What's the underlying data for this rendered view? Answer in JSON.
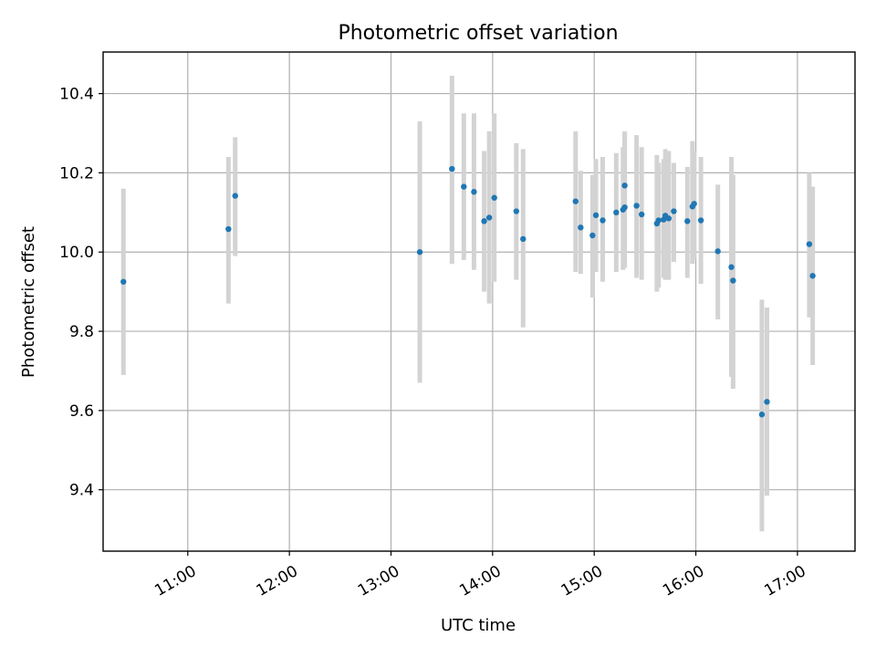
{
  "chart_data": {
    "type": "scatter",
    "title": "Photometric offset variation",
    "xlabel": "UTC time",
    "ylabel": "Photometric offset",
    "grid": true,
    "xlim": [
      "10:10",
      "17:34"
    ],
    "ylim": [
      9.245,
      10.505
    ],
    "x_ticks": [
      "11:00",
      "12:00",
      "13:00",
      "14:00",
      "15:00",
      "16:00",
      "17:00"
    ],
    "y_ticks": [
      9.4,
      9.6,
      9.8,
      10.0,
      10.2,
      10.4
    ],
    "colors": {
      "points": "#1f77b4",
      "error_bars": "#d3d3d3"
    },
    "points": [
      {
        "x": "10:22",
        "y": 9.925,
        "yerr": [
          9.69,
          10.16
        ]
      },
      {
        "x": "11:24",
        "y": 10.058,
        "yerr": [
          9.87,
          10.24
        ]
      },
      {
        "x": "11:28",
        "y": 10.142,
        "yerr": [
          9.99,
          10.29
        ]
      },
      {
        "x": "13:17",
        "y": 10.0,
        "yerr": [
          9.67,
          10.33
        ]
      },
      {
        "x": "13:36",
        "y": 10.21,
        "yerr": [
          9.97,
          10.445
        ]
      },
      {
        "x": "13:43",
        "y": 10.165,
        "yerr": [
          9.98,
          10.35
        ]
      },
      {
        "x": "13:49",
        "y": 10.152,
        "yerr": [
          9.955,
          10.35
        ]
      },
      {
        "x": "13:55",
        "y": 10.078,
        "yerr": [
          9.9,
          10.255
        ]
      },
      {
        "x": "13:58",
        "y": 10.087,
        "yerr": [
          9.87,
          10.305
        ]
      },
      {
        "x": "14:01",
        "y": 10.137,
        "yerr": [
          9.925,
          10.35
        ]
      },
      {
        "x": "14:14",
        "y": 10.103,
        "yerr": [
          9.93,
          10.275
        ]
      },
      {
        "x": "14:18",
        "y": 10.033,
        "yerr": [
          9.81,
          10.26
        ]
      },
      {
        "x": "14:49",
        "y": 10.128,
        "yerr": [
          9.95,
          10.305
        ]
      },
      {
        "x": "14:52",
        "y": 10.062,
        "yerr": [
          9.945,
          10.205
        ]
      },
      {
        "x": "14:59",
        "y": 10.042,
        "yerr": [
          9.885,
          10.195
        ]
      },
      {
        "x": "15:01",
        "y": 10.093,
        "yerr": [
          9.95,
          10.235
        ]
      },
      {
        "x": "15:05",
        "y": 10.08,
        "yerr": [
          9.925,
          10.24
        ]
      },
      {
        "x": "15:13",
        "y": 10.1,
        "yerr": [
          9.95,
          10.25
        ]
      },
      {
        "x": "15:17",
        "y": 10.107,
        "yerr": [
          9.955,
          10.265
        ]
      },
      {
        "x": "15:18",
        "y": 10.168,
        "yerr": [
          10.03,
          10.305
        ]
      },
      {
        "x": "15:18",
        "y": 10.113,
        "yerr": [
          9.96,
          10.3
        ]
      },
      {
        "x": "15:25",
        "y": 10.117,
        "yerr": [
          9.935,
          10.295
        ]
      },
      {
        "x": "15:28",
        "y": 10.095,
        "yerr": [
          9.93,
          10.265
        ]
      },
      {
        "x": "15:37",
        "y": 10.072,
        "yerr": [
          9.9,
          10.245
        ]
      },
      {
        "x": "15:38",
        "y": 10.08,
        "yerr": [
          9.91,
          10.225
        ]
      },
      {
        "x": "15:41",
        "y": 10.082,
        "yerr": [
          9.935,
          10.235
        ]
      },
      {
        "x": "15:42",
        "y": 10.092,
        "yerr": [
          9.93,
          10.26
        ]
      },
      {
        "x": "15:44",
        "y": 10.085,
        "yerr": [
          9.93,
          10.255
        ]
      },
      {
        "x": "15:47",
        "y": 10.103,
        "yerr": [
          9.975,
          10.225
        ]
      },
      {
        "x": "15:55",
        "y": 10.078,
        "yerr": [
          9.935,
          10.215
        ]
      },
      {
        "x": "15:58",
        "y": 10.115,
        "yerr": [
          9.97,
          10.28
        ]
      },
      {
        "x": "15:59",
        "y": 10.122,
        "yerr": [
          9.985,
          10.255
        ]
      },
      {
        "x": "16:03",
        "y": 10.08,
        "yerr": [
          9.92,
          10.24
        ]
      },
      {
        "x": "16:13",
        "y": 10.002,
        "yerr": [
          9.83,
          10.17
        ]
      },
      {
        "x": "16:21",
        "y": 9.962,
        "yerr": [
          9.685,
          10.24
        ]
      },
      {
        "x": "16:22",
        "y": 9.928,
        "yerr": [
          9.655,
          10.195
        ]
      },
      {
        "x": "16:39",
        "y": 9.59,
        "yerr": [
          9.295,
          9.88
        ]
      },
      {
        "x": "16:42",
        "y": 9.622,
        "yerr": [
          9.385,
          9.86
        ]
      },
      {
        "x": "17:07",
        "y": 10.02,
        "yerr": [
          9.835,
          10.2
        ]
      },
      {
        "x": "17:09",
        "y": 9.94,
        "yerr": [
          9.715,
          10.165
        ]
      }
    ]
  }
}
